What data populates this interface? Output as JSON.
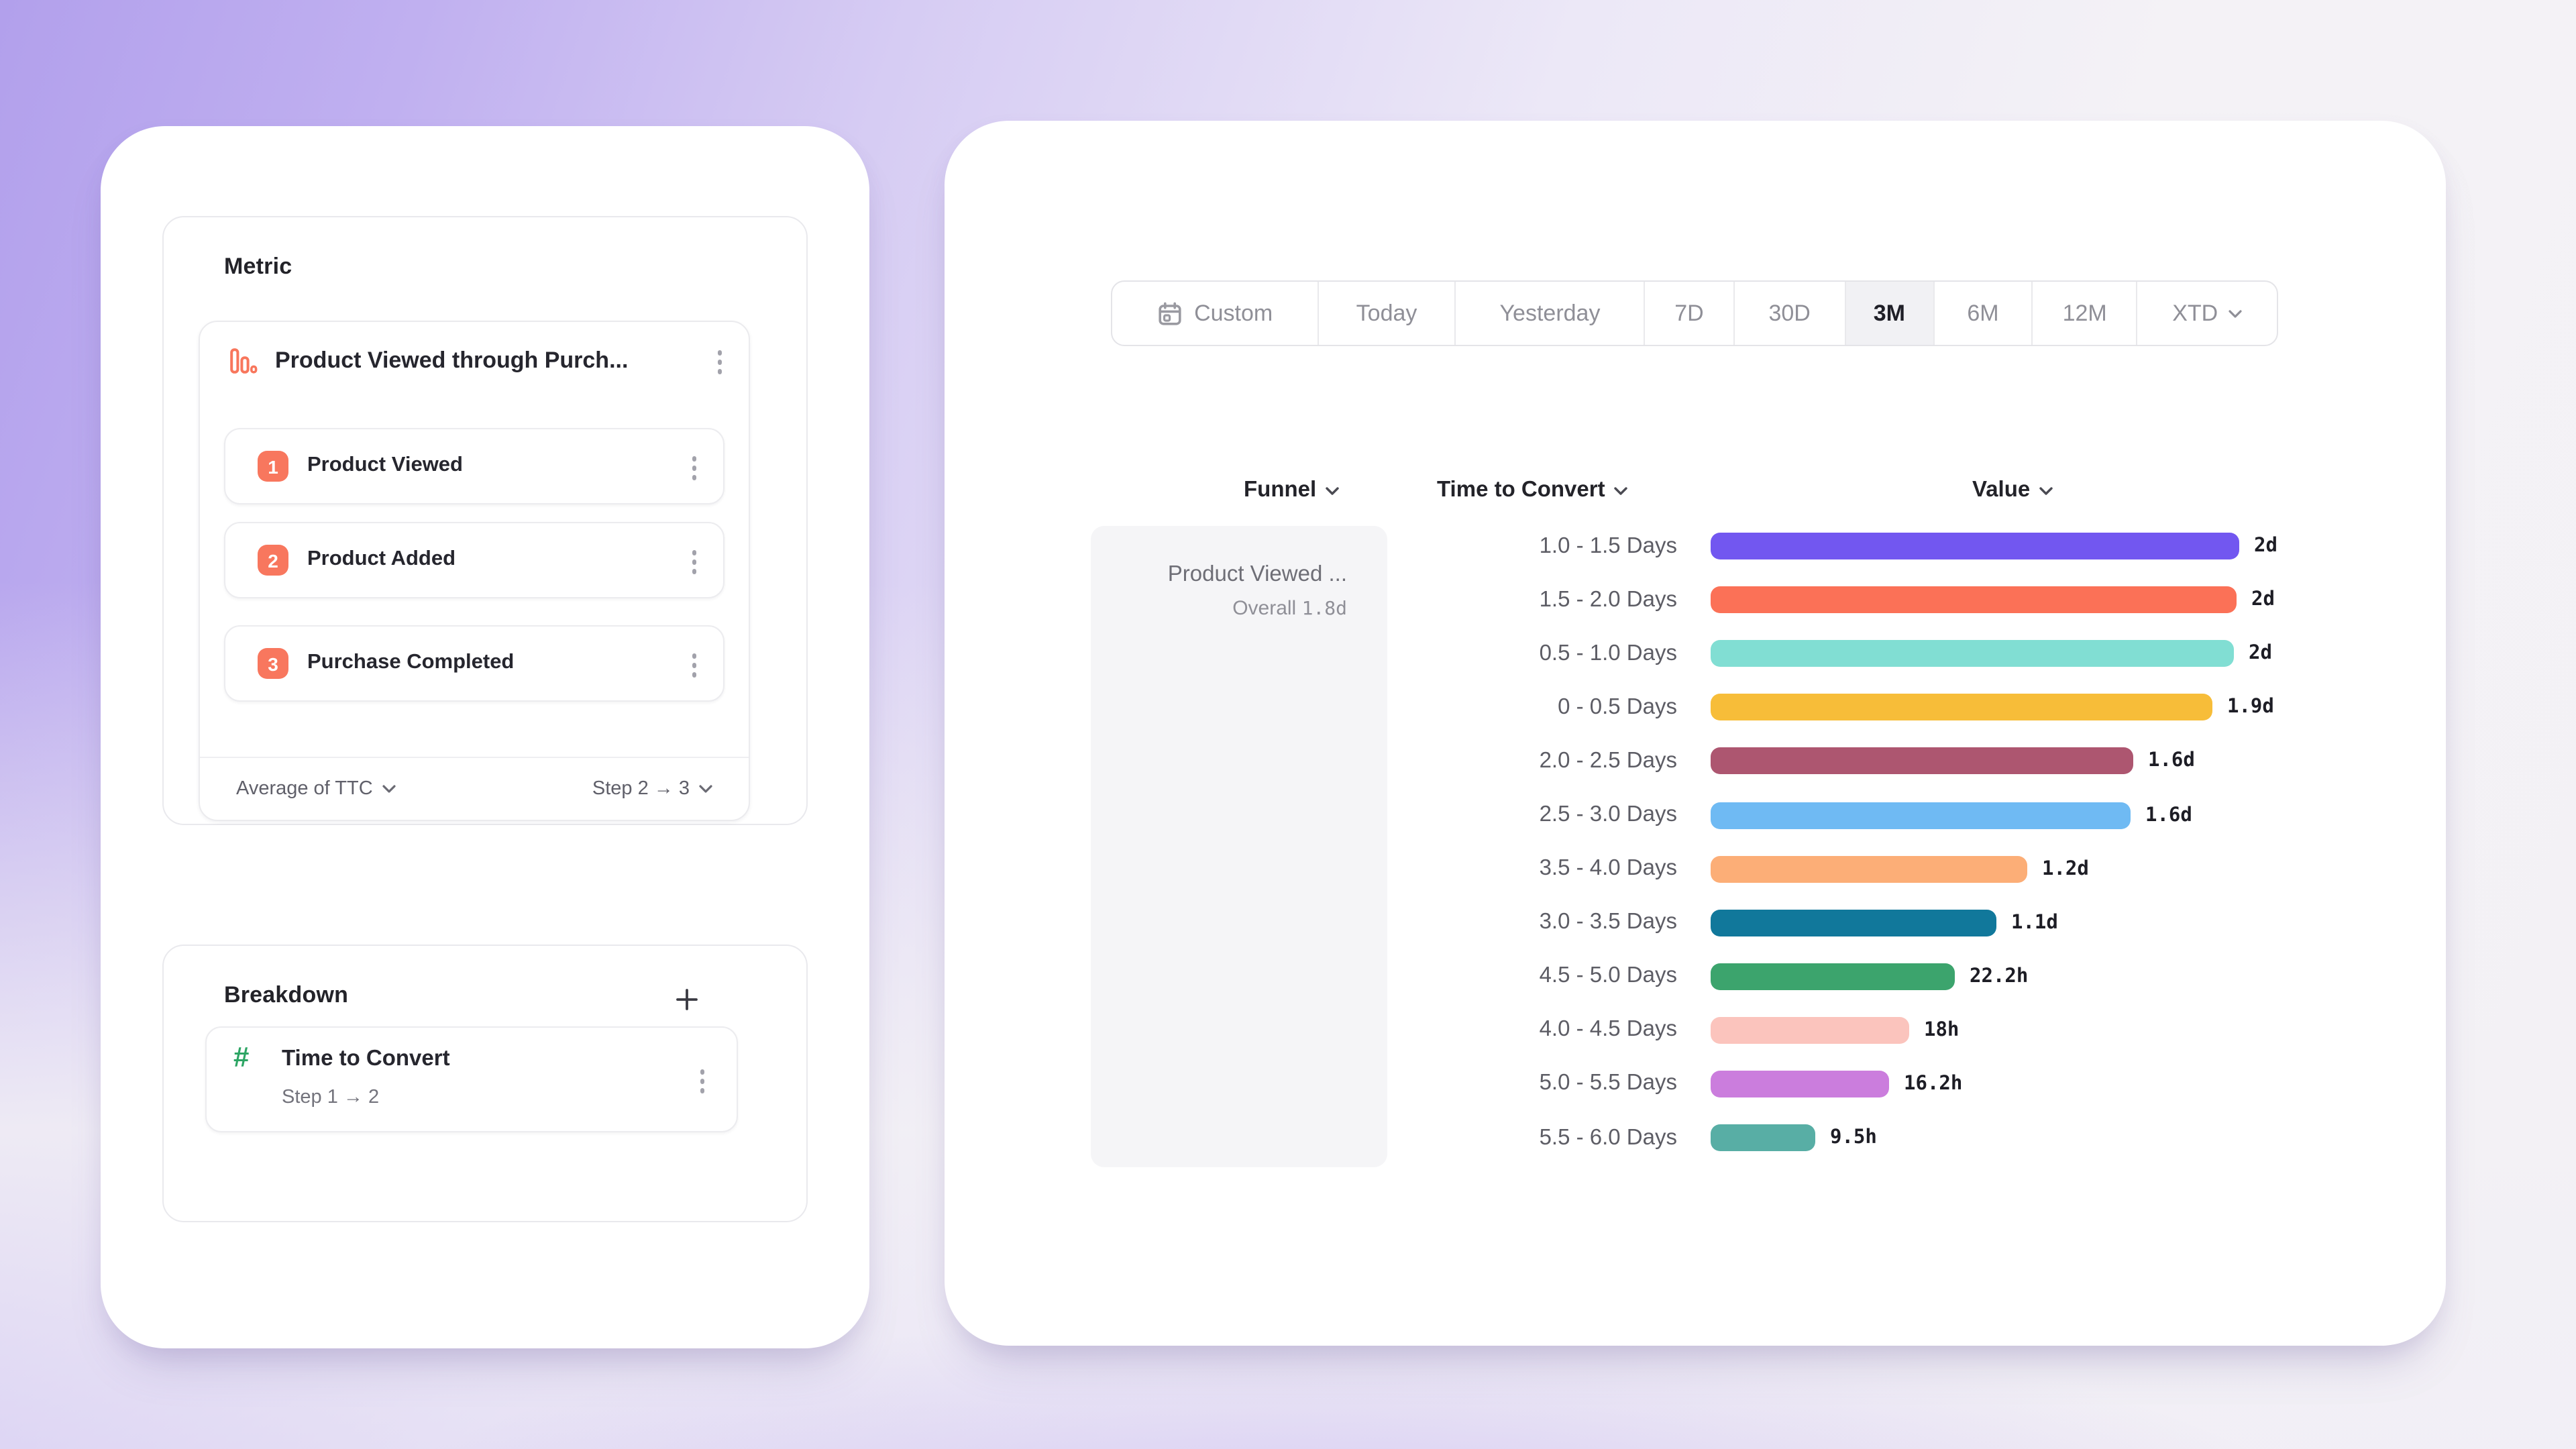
{
  "theme": {
    "accent_coral": "#f8775e",
    "accent_green": "#2da564",
    "text_dark": "#232329",
    "text_gray": "#5d5d65",
    "text_muted": "#8f8f97",
    "selected_segment_bg": "#f1f1f4",
    "funnel_cell_bg": "#f5f5f7"
  },
  "left_panel": {
    "metric_card": {
      "title": "Metric",
      "funnel": {
        "icon": "funnel-bars-icon",
        "title": "Product Viewed through Purch...",
        "steps": [
          {
            "number": "1",
            "label": "Product Viewed"
          },
          {
            "number": "2",
            "label": "Product Added"
          },
          {
            "number": "3",
            "label": "Purchase Completed"
          }
        ],
        "footer": {
          "aggregation": "Average of TTC",
          "step_range": "Step 2 → 3"
        }
      }
    },
    "breakdown_card": {
      "title": "Breakdown",
      "item": {
        "icon": "hash-icon",
        "label": "Time to Convert",
        "sublabel": "Step 1 → 2"
      }
    }
  },
  "right_panel": {
    "date_picker": {
      "segments": [
        {
          "label": "Custom",
          "icon": "calendar-icon",
          "selected": false,
          "chevron": false
        },
        {
          "label": "Today",
          "selected": false,
          "chevron": false
        },
        {
          "label": "Yesterday",
          "selected": false,
          "chevron": false
        },
        {
          "label": "7D",
          "selected": false,
          "chevron": false
        },
        {
          "label": "30D",
          "selected": false,
          "chevron": false
        },
        {
          "label": "3M",
          "selected": true,
          "chevron": false
        },
        {
          "label": "6M",
          "selected": false,
          "chevron": false
        },
        {
          "label": "12M",
          "selected": false,
          "chevron": false
        },
        {
          "label": "XTD",
          "selected": false,
          "chevron": true
        }
      ]
    },
    "table": {
      "funnel_header": "Funnel",
      "breakdown_header": "Time to Convert",
      "value_header": "Value",
      "funnel_cell": {
        "title": "Product Viewed ...",
        "overall_label": "Overall",
        "overall_value": "1.8d"
      }
    }
  },
  "chart_data": {
    "type": "bar",
    "orientation": "horizontal",
    "title": "Time to Convert",
    "xlabel": "Value",
    "x_unit": "days",
    "legend": false,
    "gridlines": false,
    "categories": [
      "1.0 - 1.5 Days",
      "1.5 - 2.0 Days",
      "0.5 - 1.0 Days",
      "0 - 0.5 Days",
      "2.0 - 2.5 Days",
      "2.5 - 3.0 Days",
      "3.5 - 4.0 Days",
      "3.0 - 3.5 Days",
      "4.5 - 5.0 Days",
      "4.0 - 4.5 Days",
      "5.0 - 5.5 Days",
      "5.5 - 6.0 Days"
    ],
    "values_days": [
      2.0,
      1.99,
      1.98,
      1.9,
      1.6,
      1.59,
      1.2,
      1.08,
      0.925,
      0.75,
      0.675,
      0.396
    ],
    "value_labels": [
      "2d",
      "2d",
      "2d",
      "1.9d",
      "1.6d",
      "1.6d",
      "1.2d",
      "1.1d",
      "22.2h",
      "18h",
      "16.2h",
      "9.5h"
    ],
    "colors": [
      "#7257f0",
      "#fb7157",
      "#81ded3",
      "#f7bd39",
      "#ad5670",
      "#6fbaf3",
      "#fcae77",
      "#11789b",
      "#3ca46d",
      "#fbc4bd",
      "#cb7ddd",
      "#58aea5"
    ],
    "xlim_days": [
      0,
      2.0
    ]
  }
}
